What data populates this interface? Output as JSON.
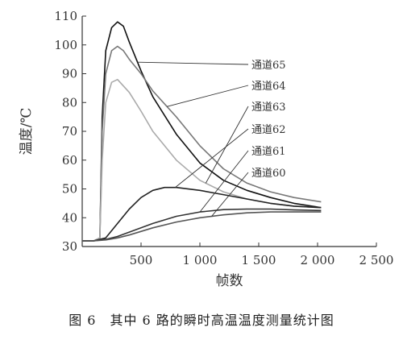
{
  "caption": "图 6　其中 6 路的瞬时高温温度测量统计图",
  "chart_data": {
    "type": "line",
    "title": "",
    "xlabel": "帧数",
    "ylabel": "温度/℃",
    "xlim": [
      0,
      2500
    ],
    "ylim": [
      30,
      110
    ],
    "xticks": [
      500,
      1000,
      1500,
      2000,
      2500
    ],
    "xtick_labels": [
      "500",
      "1 000",
      "1 500",
      "2 000",
      "2 500"
    ],
    "yticks": [
      30,
      40,
      50,
      60,
      70,
      80,
      90,
      100,
      110
    ],
    "ytick_labels": [
      "30",
      "40",
      "50",
      "60",
      "70",
      "80",
      "90",
      "100",
      "110"
    ],
    "grid": false,
    "series": [
      {
        "name": "通道65",
        "color": "#111111",
        "x": [
          0,
          100,
          150,
          170,
          200,
          250,
          300,
          350,
          400,
          500,
          600,
          800,
          1000,
          1200,
          1400,
          1600,
          1800,
          2030
        ],
        "y": [
          32,
          32,
          33,
          75,
          98,
          106,
          108,
          106.5,
          101,
          91,
          82,
          69,
          59,
          53,
          49.5,
          47,
          45,
          43.5
        ]
      },
      {
        "name": "通道64",
        "color": "#777777",
        "x": [
          0,
          100,
          150,
          170,
          200,
          250,
          300,
          350,
          400,
          500,
          600,
          800,
          1000,
          1200,
          1400,
          1600,
          1800,
          2030
        ],
        "y": [
          32,
          32,
          33,
          70,
          90,
          98,
          99.5,
          98,
          95,
          90,
          84,
          75,
          65,
          57,
          52,
          49,
          47,
          45.5
        ]
      },
      {
        "name": "通道63",
        "color": "#aaaaaa",
        "x": [
          0,
          100,
          150,
          170,
          200,
          250,
          300,
          400,
          500,
          600,
          800,
          1000,
          1200,
          1400,
          1600,
          1800,
          2030
        ],
        "y": [
          32,
          32,
          33,
          60,
          80,
          87,
          88,
          83.5,
          77,
          70,
          60,
          53,
          49,
          46.5,
          45,
          44,
          43.5
        ]
      },
      {
        "name": "通道62",
        "color": "#222222",
        "x": [
          0,
          100,
          200,
          300,
          400,
          500,
          600,
          700,
          800,
          1000,
          1200,
          1400,
          1600,
          1800,
          2030
        ],
        "y": [
          32,
          32,
          33,
          38,
          43,
          47,
          49.5,
          50.5,
          50.5,
          49.5,
          48,
          46.5,
          45,
          44,
          43.5
        ]
      },
      {
        "name": "通道61",
        "color": "#333333",
        "x": [
          0,
          100,
          200,
          300,
          400,
          600,
          800,
          1000,
          1200,
          1400,
          1600,
          1800,
          2030
        ],
        "y": [
          32,
          32,
          32.5,
          33.5,
          35,
          38,
          40.5,
          42,
          42.8,
          43,
          43,
          42.7,
          42.5
        ]
      },
      {
        "name": "通道60",
        "color": "#555555",
        "x": [
          0,
          100,
          200,
          300,
          400,
          600,
          800,
          1000,
          1200,
          1400,
          1600,
          1800,
          2030
        ],
        "y": [
          32,
          32,
          32.3,
          33,
          34,
          36.5,
          38.5,
          40,
          41,
          41.7,
          42,
          42,
          42
        ]
      }
    ]
  }
}
